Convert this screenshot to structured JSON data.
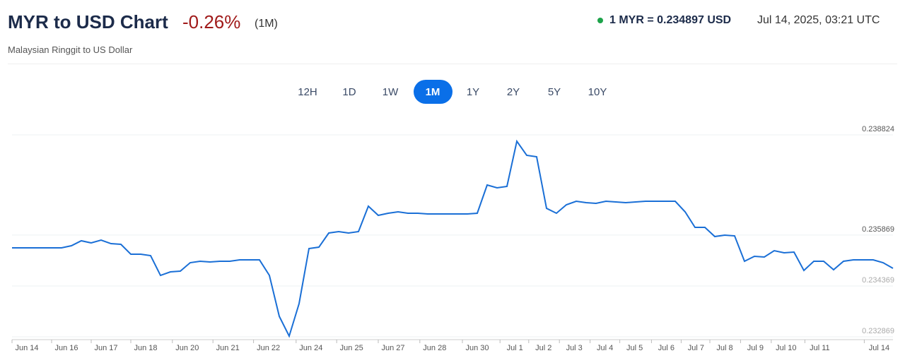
{
  "header": {
    "title": "MYR to USD Chart",
    "change": "-0.26%",
    "period": "(1M)",
    "subtitle": "Malaysian Ringgit to US Dollar",
    "rate": "1 MYR = 0.234897 USD",
    "timestamp": "Jul 14, 2025, 03:21 UTC"
  },
  "buttons": [
    "12H",
    "1D",
    "1W",
    "1M",
    "1Y",
    "2Y",
    "5Y",
    "10Y"
  ],
  "active_button": 3,
  "chart_data": {
    "type": "line",
    "color": "#1a6fd6",
    "grid": true,
    "xlim": [
      0,
      89
    ],
    "xticks": [
      {
        "value": 1.5,
        "label": "Jun 14"
      },
      {
        "value": 5.5,
        "label": "Jun 16"
      },
      {
        "value": 9.5,
        "label": "Jun 17"
      },
      {
        "value": 13.5,
        "label": "Jun 18"
      },
      {
        "value": 17.7,
        "label": "Jun 20"
      },
      {
        "value": 21.8,
        "label": "Jun 21"
      },
      {
        "value": 25.9,
        "label": "Jun 22"
      },
      {
        "value": 30.2,
        "label": "Jun 24"
      },
      {
        "value": 34.3,
        "label": "Jun 25"
      },
      {
        "value": 38.5,
        "label": "Jun 27"
      },
      {
        "value": 42.7,
        "label": "Jun 28"
      },
      {
        "value": 47,
        "label": "Jun 30"
      },
      {
        "value": 50.8,
        "label": "Jul 1"
      },
      {
        "value": 53.7,
        "label": "Jul 2"
      },
      {
        "value": 56.8,
        "label": "Jul 3"
      },
      {
        "value": 59.9,
        "label": "Jul 4"
      },
      {
        "value": 62.9,
        "label": "Jul 5"
      },
      {
        "value": 66.1,
        "label": "Jul 6"
      },
      {
        "value": 69.1,
        "label": "Jul 7"
      },
      {
        "value": 72,
        "label": "Jul 8"
      },
      {
        "value": 75.1,
        "label": "Jul 9"
      },
      {
        "value": 78.2,
        "label": "Jul 10"
      },
      {
        "value": 81.6,
        "label": "Jul 11"
      },
      {
        "value": 87.6,
        "label": "Jul 14"
      }
    ],
    "ylim": [
      0.232869,
      0.238824
    ],
    "yticks": [
      0.238824,
      0.235869,
      0.234369,
      0.232869
    ],
    "values": [
      0.235492,
      0.235492,
      0.235492,
      0.235492,
      0.235492,
      0.235492,
      0.235555,
      0.235701,
      0.235638,
      0.235721,
      0.235617,
      0.235596,
      0.235305,
      0.235305,
      0.235263,
      0.23468,
      0.234784,
      0.234805,
      0.235055,
      0.235097,
      0.235076,
      0.235097,
      0.235097,
      0.235138,
      0.235138,
      0.235138,
      0.23468,
      0.233473,
      0.23289,
      0.233848,
      0.235472,
      0.235513,
      0.23593,
      0.235971,
      0.23593,
      0.235971,
      0.236721,
      0.23645,
      0.236513,
      0.236554,
      0.236513,
      0.236513,
      0.236492,
      0.236492,
      0.236492,
      0.236492,
      0.236492,
      0.236513,
      0.237345,
      0.237262,
      0.237304,
      0.238636,
      0.23822,
      0.238178,
      0.236658,
      0.236513,
      0.236762,
      0.236866,
      0.236825,
      0.236804,
      0.236866,
      0.236846,
      0.236825,
      0.236846,
      0.236866,
      0.236866,
      0.236866,
      0.236866,
      0.236554,
      0.236096,
      0.236096,
      0.235825,
      0.235867,
      0.235846,
      0.235097,
      0.235242,
      0.235222,
      0.235409,
      0.235347,
      0.235367,
      0.234826,
      0.235097,
      0.235097,
      0.234847,
      0.235097,
      0.235138,
      0.235138,
      0.235138,
      0.235055,
      0.234889
    ]
  }
}
